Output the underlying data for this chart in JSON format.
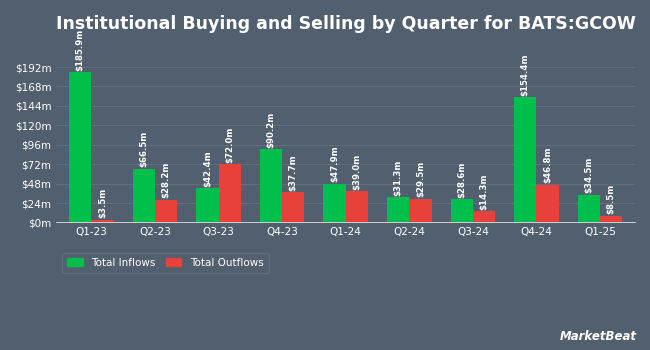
{
  "title": "Institutional Buying and Selling by Quarter for BATS:GCOW",
  "quarters": [
    "Q1-23",
    "Q2-23",
    "Q3-23",
    "Q4-23",
    "Q1-24",
    "Q2-24",
    "Q3-24",
    "Q4-24",
    "Q1-25"
  ],
  "inflows": [
    185.9,
    66.5,
    42.4,
    90.2,
    47.9,
    31.3,
    28.6,
    154.4,
    34.5
  ],
  "outflows": [
    3.5,
    28.2,
    72.0,
    37.7,
    39.0,
    29.5,
    14.3,
    46.8,
    8.5
  ],
  "inflow_labels": [
    "$185.9m",
    "$66.5m",
    "$42.4m",
    "$90.2m",
    "$47.9m",
    "$31.3m",
    "$28.6m",
    "$154.4m",
    "$34.5m"
  ],
  "outflow_labels": [
    "$3.5m",
    "$28.2m",
    "$72.0m",
    "$37.7m",
    "$39.0m",
    "$29.5m",
    "$14.3m",
    "$46.8m",
    "$8.5m"
  ],
  "inflow_color": "#00c04b",
  "outflow_color": "#e8403a",
  "bg_color": "#525f6e",
  "grid_color": "#65737e",
  "text_color": "#ffffff",
  "yticks": [
    0,
    24,
    48,
    72,
    96,
    120,
    144,
    168,
    192
  ],
  "ytick_labels": [
    "$0m",
    "$24m",
    "$48m",
    "$72m",
    "$96m",
    "$120m",
    "$144m",
    "$168m",
    "$192m"
  ],
  "ylim": [
    0,
    215
  ],
  "bar_width": 0.35,
  "title_fontsize": 12.5,
  "label_fontsize": 6.2,
  "tick_fontsize": 7.5,
  "legend_fontsize": 7.5
}
